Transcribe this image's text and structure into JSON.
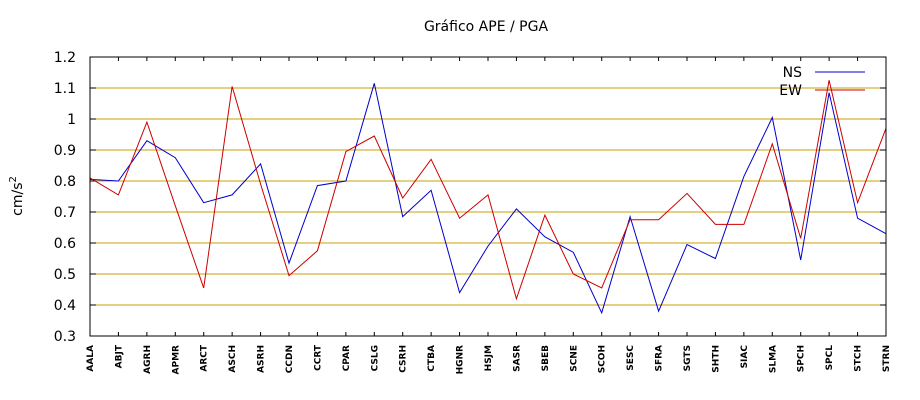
{
  "chart_data": {
    "type": "line",
    "title": "Gráfico  APE / PGA",
    "xlabel": "",
    "ylabel": "cm/s",
    "ylabel_superscript": "2",
    "ylim": [
      0.3,
      1.2
    ],
    "yticks": [
      "0.3",
      "0.4",
      "0.5",
      "0.6",
      "0.7",
      "0.8",
      "0.9",
      "1",
      "1.1",
      "1.2"
    ],
    "grid": true,
    "grid_color": "#c8a000",
    "legend_position": "top-right",
    "categories": [
      "AALA",
      "ABJT",
      "AGRH",
      "APMR",
      "ARCT",
      "ASCH",
      "ASRH",
      "CCDN",
      "CCRT",
      "CPAR",
      "CSLG",
      "CSRH",
      "CTBA",
      "HGNR",
      "HSJM",
      "SASR",
      "SBEB",
      "SCNE",
      "SCOH",
      "SESC",
      "SFRA",
      "SGTS",
      "SHTH",
      "SIAC",
      "SLMA",
      "SPCH",
      "SPCL",
      "STCH",
      "STRN"
    ],
    "series": [
      {
        "name": "NS",
        "color": "#0000cc",
        "values": [
          0.805,
          0.8,
          0.93,
          0.875,
          0.73,
          0.755,
          0.855,
          0.535,
          0.785,
          0.8,
          1.115,
          0.685,
          0.77,
          0.44,
          0.59,
          0.71,
          0.62,
          0.57,
          0.375,
          0.685,
          0.38,
          0.595,
          0.55,
          0.815,
          1.005,
          0.545,
          1.085,
          0.68,
          0.63
        ]
      },
      {
        "name": "EW",
        "color": "#cc0000",
        "values": [
          0.81,
          0.755,
          0.99,
          0.72,
          0.455,
          1.105,
          0.79,
          0.495,
          0.575,
          0.895,
          0.945,
          0.745,
          0.87,
          0.68,
          0.755,
          0.42,
          0.69,
          0.5,
          0.455,
          0.675,
          0.675,
          0.76,
          0.66,
          0.66,
          0.92,
          0.615,
          1.125,
          0.73,
          0.97
        ]
      }
    ]
  }
}
